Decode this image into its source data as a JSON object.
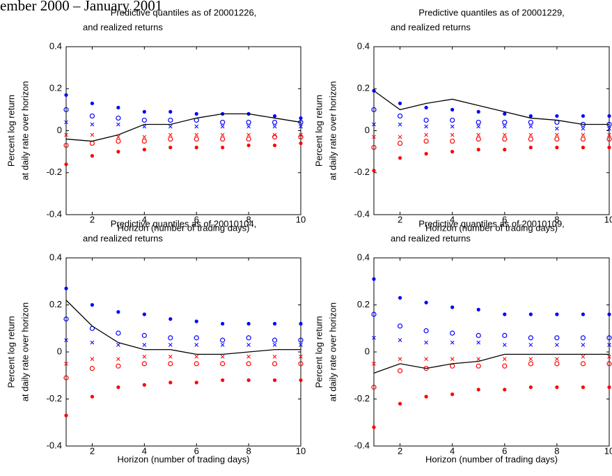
{
  "header": "ember 2000 – January 2001",
  "chart_data": [
    {
      "type": "line",
      "title": [
        "Predictive quantiles as of 20001226,",
        "and realized returns"
      ],
      "xlabel": "Horizon (number of trading days)",
      "ylabel": [
        "Percent log return",
        "at daily rate over horizon"
      ],
      "x": [
        1,
        2,
        3,
        4,
        5,
        6,
        7,
        8,
        9,
        10
      ],
      "xlim": [
        1,
        10
      ],
      "xticks": [
        2,
        4,
        6,
        8,
        10
      ],
      "ylim": [
        -0.4,
        0.4
      ],
      "yticks": [
        -0.4,
        -0.2,
        0,
        0.2,
        0.4
      ],
      "series": [
        {
          "color": "#0000ff",
          "marker": "*",
          "values": [
            0.17,
            0.13,
            0.11,
            0.09,
            0.09,
            0.08,
            0.08,
            0.08,
            0.07,
            0.06
          ]
        },
        {
          "color": "#0000ff",
          "marker": "o",
          "values": [
            0.1,
            0.07,
            0.06,
            0.05,
            0.05,
            0.05,
            0.04,
            0.04,
            0.04,
            0.04
          ]
        },
        {
          "color": "#0000ff",
          "marker": "x",
          "values": [
            0.04,
            0.03,
            0.03,
            0.02,
            0.02,
            0.02,
            0.02,
            0.02,
            0.02,
            0.02
          ]
        },
        {
          "color": "#ff0000",
          "marker": "x",
          "values": [
            -0.02,
            -0.02,
            -0.03,
            -0.03,
            -0.02,
            -0.02,
            -0.02,
            -0.02,
            -0.02,
            -0.02
          ]
        },
        {
          "color": "#ff0000",
          "marker": "o",
          "values": [
            -0.07,
            -0.06,
            -0.05,
            -0.05,
            -0.04,
            -0.04,
            -0.04,
            -0.04,
            -0.03,
            -0.03
          ]
        },
        {
          "color": "#ff0000",
          "marker": "*",
          "values": [
            -0.16,
            -0.12,
            -0.1,
            -0.09,
            -0.08,
            -0.08,
            -0.08,
            -0.07,
            -0.07,
            -0.06
          ]
        },
        {
          "color": "#000000",
          "marker": "-",
          "values": [
            -0.04,
            -0.05,
            -0.02,
            0.03,
            0.03,
            0.06,
            0.08,
            0.08,
            0.06,
            0.04
          ]
        }
      ]
    },
    {
      "type": "line",
      "title": [
        "Predictive quantiles as of 20001229,",
        "and realized returns"
      ],
      "xlabel": "Horizon (number of trading days)",
      "ylabel": [
        "Percent log return",
        "at daily rate over horizon"
      ],
      "x": [
        1,
        2,
        3,
        4,
        5,
        6,
        7,
        8,
        9,
        10
      ],
      "xlim": [
        1,
        10
      ],
      "xticks": [
        2,
        4,
        6,
        8,
        10
      ],
      "ylim": [
        -0.4,
        0.4
      ],
      "yticks": [
        -0.4,
        -0.2,
        0,
        0.2,
        0.4
      ],
      "series": [
        {
          "color": "#0000ff",
          "marker": "*",
          "values": [
            0.19,
            0.13,
            0.11,
            0.1,
            0.09,
            0.08,
            0.07,
            0.07,
            0.07,
            0.07
          ]
        },
        {
          "color": "#0000ff",
          "marker": "o",
          "values": [
            0.1,
            0.07,
            0.05,
            0.05,
            0.04,
            0.04,
            0.04,
            0.04,
            0.03,
            0.03
          ]
        },
        {
          "color": "#0000ff",
          "marker": "x",
          "values": [
            0.03,
            0.03,
            0.02,
            0.02,
            0.02,
            0.02,
            0.02,
            0.01,
            0.01,
            0.01
          ]
        },
        {
          "color": "#ff0000",
          "marker": "x",
          "values": [
            -0.03,
            -0.03,
            -0.02,
            -0.02,
            -0.02,
            -0.02,
            -0.02,
            -0.02,
            -0.02,
            -0.02
          ]
        },
        {
          "color": "#ff0000",
          "marker": "o",
          "values": [
            -0.08,
            -0.06,
            -0.05,
            -0.05,
            -0.04,
            -0.04,
            -0.04,
            -0.04,
            -0.04,
            -0.04
          ]
        },
        {
          "color": "#ff0000",
          "marker": "*",
          "values": [
            -0.19,
            -0.13,
            -0.11,
            -0.1,
            -0.09,
            -0.09,
            -0.08,
            -0.08,
            -0.08,
            -0.08
          ]
        },
        {
          "color": "#000000",
          "marker": "-",
          "values": [
            0.19,
            0.1,
            0.13,
            0.15,
            0.12,
            0.09,
            0.06,
            0.05,
            0.03,
            0.03
          ]
        }
      ]
    },
    {
      "type": "line",
      "title": [
        "Predictive quantiles as of 20010104,",
        "and realized returns"
      ],
      "xlabel": "Horizon (number of trading days)",
      "ylabel": [
        "Percent log return",
        "at daily rate over horizon"
      ],
      "x": [
        1,
        2,
        3,
        4,
        5,
        6,
        7,
        8,
        9,
        10
      ],
      "xlim": [
        1,
        10
      ],
      "xticks": [
        2,
        4,
        6,
        8,
        10
      ],
      "ylim": [
        -0.4,
        0.4
      ],
      "yticks": [
        -0.4,
        -0.2,
        0,
        0.2,
        0.4
      ],
      "series": [
        {
          "color": "#0000ff",
          "marker": "*",
          "values": [
            0.27,
            0.2,
            0.17,
            0.16,
            0.14,
            0.13,
            0.12,
            0.12,
            0.12,
            0.12
          ]
        },
        {
          "color": "#0000ff",
          "marker": "o",
          "values": [
            0.14,
            0.1,
            0.08,
            0.07,
            0.06,
            0.06,
            0.05,
            0.06,
            0.05,
            0.05
          ]
        },
        {
          "color": "#0000ff",
          "marker": "x",
          "values": [
            0.05,
            0.04,
            0.03,
            0.03,
            0.03,
            0.03,
            0.03,
            0.03,
            0.03,
            0.03
          ]
        },
        {
          "color": "#ff0000",
          "marker": "x",
          "values": [
            -0.05,
            -0.03,
            -0.03,
            -0.02,
            -0.02,
            -0.02,
            -0.02,
            -0.02,
            -0.02,
            -0.02
          ]
        },
        {
          "color": "#ff0000",
          "marker": "o",
          "values": [
            -0.11,
            -0.07,
            -0.06,
            -0.05,
            -0.05,
            -0.05,
            -0.05,
            -0.05,
            -0.05,
            -0.05
          ]
        },
        {
          "color": "#ff0000",
          "marker": "*",
          "values": [
            -0.27,
            -0.19,
            -0.15,
            -0.14,
            -0.13,
            -0.13,
            -0.12,
            -0.12,
            -0.12,
            -0.12
          ]
        },
        {
          "color": "#000000",
          "marker": "-",
          "values": [
            0.22,
            0.11,
            0.04,
            0.01,
            0.01,
            -0.01,
            -0.01,
            0,
            0.01,
            0.01
          ]
        }
      ]
    },
    {
      "type": "line",
      "title": [
        "Predictive quantiles as of 20010109,",
        "and realized returns"
      ],
      "xlabel": "Horizon (number of trading days)",
      "ylabel": [
        "Percent log return",
        "at daily rate over horizon"
      ],
      "x": [
        1,
        2,
        3,
        4,
        5,
        6,
        7,
        8,
        9,
        10
      ],
      "xlim": [
        1,
        10
      ],
      "xticks": [
        2,
        4,
        6,
        8,
        10
      ],
      "ylim": [
        -0.4,
        0.4
      ],
      "yticks": [
        -0.4,
        -0.2,
        0,
        0.2,
        0.4
      ],
      "series": [
        {
          "color": "#0000ff",
          "marker": "*",
          "values": [
            0.31,
            0.23,
            0.21,
            0.19,
            0.18,
            0.16,
            0.16,
            0.16,
            0.16,
            0.16
          ]
        },
        {
          "color": "#0000ff",
          "marker": "o",
          "values": [
            0.16,
            0.11,
            0.09,
            0.08,
            0.07,
            0.07,
            0.06,
            0.06,
            0.06,
            0.06
          ]
        },
        {
          "color": "#0000ff",
          "marker": "x",
          "values": [
            0.06,
            0.05,
            0.04,
            0.04,
            0.04,
            0.03,
            0.03,
            0.03,
            0.03,
            0.03
          ]
        },
        {
          "color": "#ff0000",
          "marker": "x",
          "values": [
            -0.05,
            -0.03,
            -0.03,
            -0.03,
            -0.03,
            -0.03,
            -0.03,
            -0.03,
            -0.02,
            -0.02
          ]
        },
        {
          "color": "#ff0000",
          "marker": "o",
          "values": [
            -0.15,
            -0.08,
            -0.07,
            -0.06,
            -0.06,
            -0.06,
            -0.05,
            -0.05,
            -0.05,
            -0.05
          ]
        },
        {
          "color": "#ff0000",
          "marker": "*",
          "values": [
            -0.32,
            -0.22,
            -0.19,
            -0.18,
            -0.16,
            -0.16,
            -0.15,
            -0.15,
            -0.15,
            -0.15
          ]
        },
        {
          "color": "#000000",
          "marker": "-",
          "values": [
            -0.09,
            -0.05,
            -0.07,
            -0.05,
            -0.04,
            -0.01,
            -0.01,
            -0.01,
            -0.01,
            -0.01
          ]
        }
      ]
    }
  ]
}
